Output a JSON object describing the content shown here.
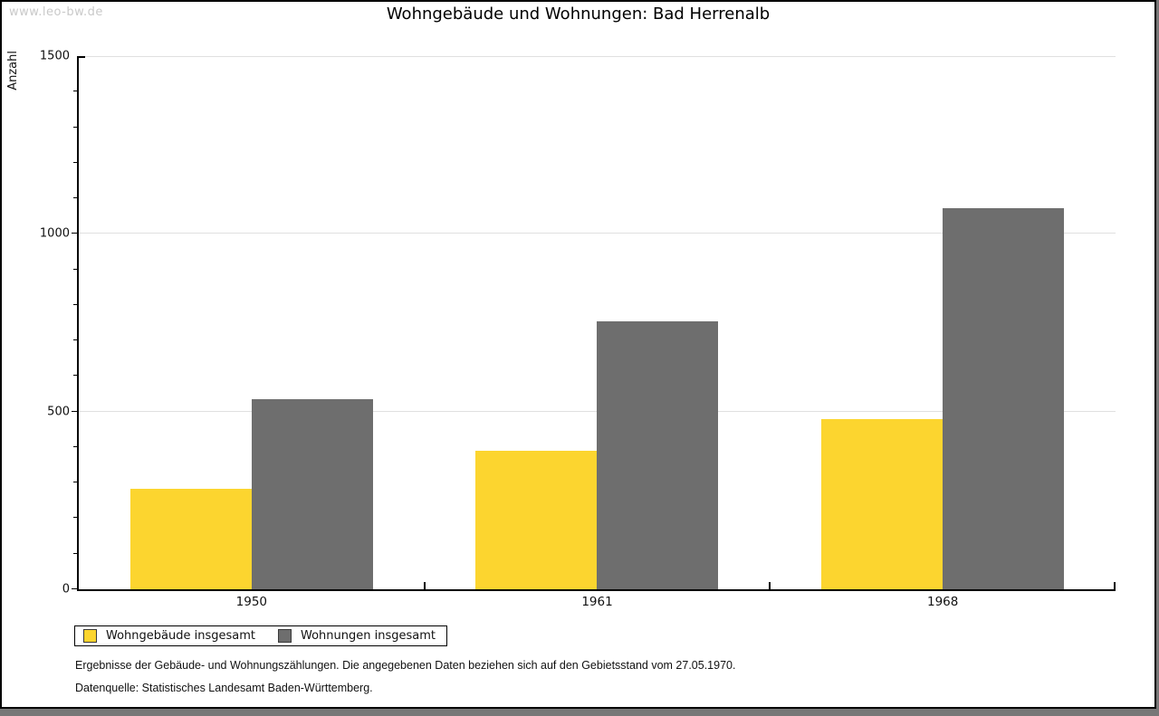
{
  "watermark": "www.leo-bw.de",
  "chart_data": {
    "type": "bar",
    "title": "Wohngebäude und Wohnungen: Bad Herrenalb",
    "ylabel": "Anzahl",
    "xlabel": "",
    "categories": [
      "1950",
      "1961",
      "1968"
    ],
    "series": [
      {
        "name": "Wohngebäude insgesamt",
        "color": "#FCD52F",
        "values": [
          282,
          389,
          478
        ]
      },
      {
        "name": "Wohnungen insgesamt",
        "color": "#6E6E6E",
        "values": [
          536,
          754,
          1071
        ]
      }
    ],
    "ylim": [
      0,
      1500
    ],
    "yticks_major": [
      0,
      500,
      1000,
      1500
    ],
    "ytick_minor_step": 100,
    "gridlines": [
      500,
      1000,
      1500
    ],
    "grid_on": true,
    "legend_position": "bottom-left"
  },
  "footnotes": [
    "Ergebnisse der Gebäude- und Wohnungszählungen. Die angegebenen Daten beziehen sich auf den Gebietsstand vom 27.05.1970.",
    "Datenquelle: Statistisches Landesamt Baden-Württemberg."
  ]
}
